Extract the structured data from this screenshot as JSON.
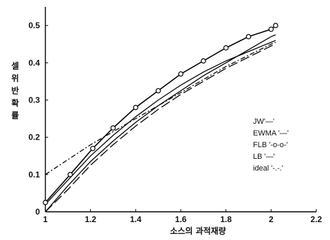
{
  "chart_data": {
    "type": "line",
    "title": "",
    "xlabel": "소스의 과적재량",
    "ylabel": "셀위반확률",
    "xlim": [
      1,
      2.2
    ],
    "ylim": [
      0,
      0.55
    ],
    "xticks": [
      "1",
      "1.2",
      "1.4",
      "1.6",
      "1.8",
      "2",
      "2.2"
    ],
    "yticks": [
      "0",
      "0.1",
      "0.2",
      "0.3",
      "0.4",
      "0.5"
    ],
    "grid": false,
    "legend_position": "right",
    "series": [
      {
        "name": "JW'—'",
        "style": "solid",
        "x": [
          1.0,
          1.1,
          1.2,
          1.3,
          1.4,
          1.5,
          1.6,
          1.7,
          1.8,
          1.9,
          2.0,
          2.02
        ],
        "y": [
          0.02,
          0.085,
          0.15,
          0.205,
          0.255,
          0.3,
          0.34,
          0.375,
          0.405,
          0.43,
          0.455,
          0.46
        ]
      },
      {
        "name": "EWMA '—'",
        "style": "longdash",
        "x": [
          1.0,
          1.1,
          1.2,
          1.3,
          1.4,
          1.5,
          1.6,
          1.7,
          1.8,
          1.9,
          2.0,
          2.02
        ],
        "y": [
          0.0,
          0.06,
          0.125,
          0.18,
          0.23,
          0.275,
          0.315,
          0.35,
          0.385,
          0.415,
          0.445,
          0.45
        ]
      },
      {
        "name": "FLB '-o-o-'",
        "style": "marker",
        "x": [
          1.0,
          1.11,
          1.21,
          1.3,
          1.4,
          1.5,
          1.6,
          1.7,
          1.8,
          1.9,
          2.0,
          2.02
        ],
        "y": [
          0.025,
          0.1,
          0.17,
          0.225,
          0.28,
          0.325,
          0.37,
          0.405,
          0.44,
          0.47,
          0.49,
          0.5
        ]
      },
      {
        "name": "LB '—'",
        "style": "solid",
        "x": [
          1.0,
          1.1,
          1.2,
          1.3,
          1.4,
          1.5,
          1.6,
          1.7,
          1.8,
          1.9,
          2.0,
          2.02
        ],
        "y": [
          0.0,
          0.07,
          0.135,
          0.19,
          0.24,
          0.285,
          0.325,
          0.365,
          0.4,
          0.435,
          0.47,
          0.475
        ]
      },
      {
        "name": "ideal '-.-.'",
        "style": "dashdot",
        "x": [
          1.0,
          1.1,
          1.2,
          1.3,
          1.4,
          1.5,
          1.6,
          1.7,
          1.8,
          1.9,
          2.0,
          2.02
        ],
        "y": [
          0.1,
          0.14,
          0.18,
          0.215,
          0.25,
          0.285,
          0.32,
          0.355,
          0.39,
          0.42,
          0.45,
          0.455
        ]
      }
    ]
  }
}
